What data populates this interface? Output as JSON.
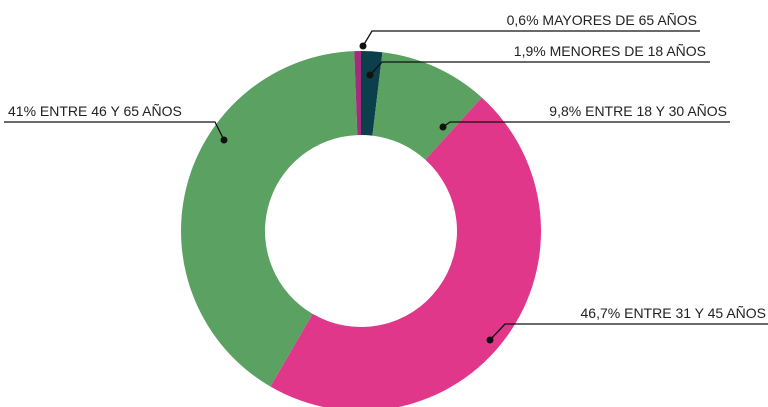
{
  "chart_data": {
    "type": "donut",
    "categories": [
      "MENORES DE 18 AÑOS",
      "ENTRE 18 Y 30 AÑOS",
      "ENTRE 31 Y 45 AÑOS",
      "ENTRE 46 Y 65 AÑOS",
      "MAYORES DE 65 AÑOS"
    ],
    "values": [
      1.9,
      9.8,
      46.7,
      41,
      0.6
    ],
    "value_labels": [
      "1,9%",
      "9,8%",
      "46,7%",
      "41%",
      "0,6%"
    ],
    "colors": [
      "#0b3f4b",
      "#5ba262",
      "#e0378b",
      "#5ba262",
      "#a52b7c"
    ]
  }
}
